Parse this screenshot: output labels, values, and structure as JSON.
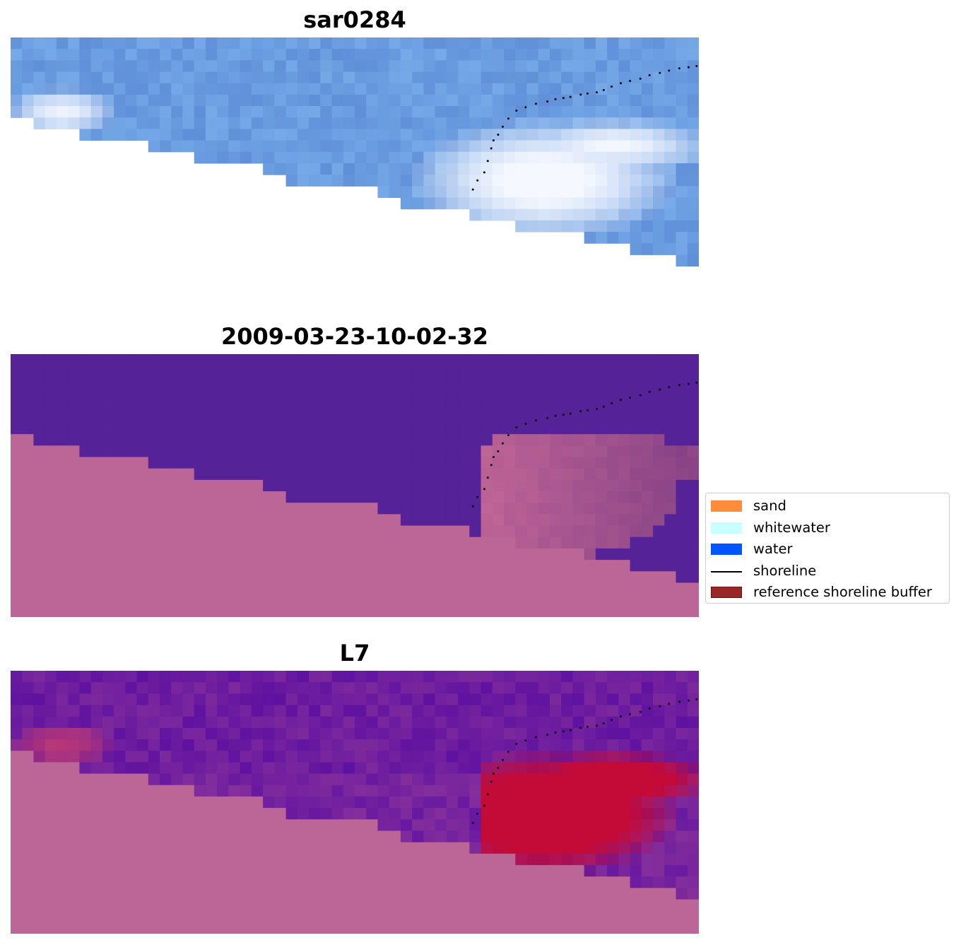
{
  "panels": [
    {
      "title": "sar0284",
      "style": "rgb"
    },
    {
      "title": "2009-03-23-10-02-32",
      "style": "classified"
    },
    {
      "title": "L7",
      "style": "index"
    }
  ],
  "legend": {
    "items": [
      {
        "label": "sand",
        "kind": "patch",
        "color": "#ff8c3a"
      },
      {
        "label": "whitewater",
        "kind": "patch",
        "color": "#c8ffff"
      },
      {
        "label": "water",
        "kind": "patch",
        "color": "#0055ff"
      },
      {
        "label": "shoreline",
        "kind": "line",
        "color": "#000000"
      },
      {
        "label": "reference shoreline buffer",
        "kind": "patch",
        "color": "#9b2626",
        "edge": "#6e1111"
      }
    ]
  },
  "colors": {
    "nodata_pink": "#bb6697",
    "water_purple": "#552397",
    "rgb_water": "#6a9ce0",
    "index_high": "#c40a37",
    "shoreline_points": "#000000"
  },
  "chart_data": {
    "type": "heatmap",
    "grid": {
      "cols": 60,
      "rows": 23
    },
    "shoreline_polyline": [
      [
        40.3,
        13.3
      ],
      [
        40.7,
        12.5
      ],
      [
        41.3,
        11.8
      ],
      [
        41.6,
        10.8
      ],
      [
        41.9,
        9.7
      ],
      [
        42.1,
        9.0
      ],
      [
        42.5,
        8.5
      ],
      [
        42.9,
        7.8
      ],
      [
        43.4,
        7.1
      ],
      [
        44.1,
        6.4
      ],
      [
        44.9,
        6.1
      ],
      [
        45.8,
        5.8
      ],
      [
        46.8,
        5.6
      ],
      [
        47.5,
        5.4
      ],
      [
        48.2,
        5.3
      ],
      [
        48.8,
        5.2
      ],
      [
        49.7,
        5.0
      ],
      [
        50.3,
        4.9
      ],
      [
        51.1,
        4.8
      ],
      [
        51.7,
        4.6
      ],
      [
        52.4,
        4.3
      ],
      [
        53.2,
        4.0
      ],
      [
        54.0,
        3.8
      ],
      [
        54.9,
        3.6
      ],
      [
        55.7,
        3.3
      ],
      [
        56.6,
        3.1
      ],
      [
        57.4,
        2.9
      ],
      [
        58.3,
        2.7
      ],
      [
        59.1,
        2.6
      ],
      [
        59.8,
        2.5
      ]
    ],
    "nodata_boundary": [
      [
        0,
        7
      ],
      [
        2,
        8
      ],
      [
        6,
        9
      ],
      [
        12,
        10
      ],
      [
        16,
        11
      ],
      [
        22,
        12
      ],
      [
        24,
        13
      ],
      [
        32,
        14
      ],
      [
        34,
        15
      ],
      [
        40,
        16
      ],
      [
        44,
        17
      ],
      [
        50,
        18
      ],
      [
        54,
        19
      ],
      [
        58,
        20
      ],
      [
        60,
        20
      ]
    ]
  }
}
